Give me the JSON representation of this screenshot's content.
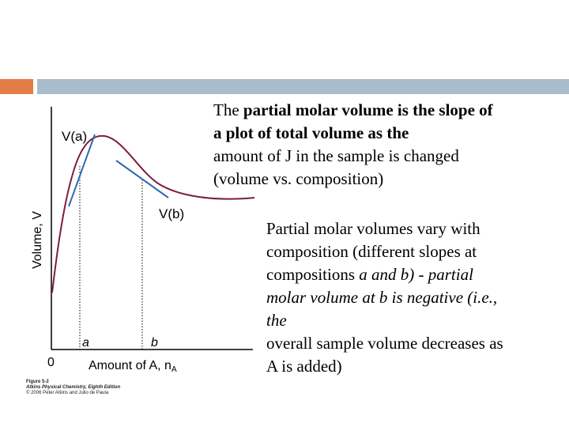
{
  "theme": {
    "accent_orange": "#E27D45",
    "accent_blue": "#A9BCCB",
    "curve_color": "#7B1F3E",
    "tangent_color": "#2E6BB5"
  },
  "main_text": {
    "line1_normal": "The ",
    "line1_bold": "partial molar volume is the slope of",
    "line2_bold": "a plot of total volume as the",
    "line3": "amount of J in the sample is changed",
    "line4": "(volume vs. composition)"
  },
  "side_text": {
    "line1": "Partial molar volumes vary with",
    "line2": "composition (different slopes at",
    "line3_normal": "compositions ",
    "line3_italic": "a and b) - partial",
    "line4_italic": "molar volume at b is negative (i.e.,",
    "line5_italic": "the",
    "line6": "overall sample volume decreases as",
    "line7": "A is added)"
  },
  "figure": {
    "y_axis_label": "Volume, V",
    "x_axis_label": "Amount of A, n",
    "x_axis_label_sub": "A",
    "origin_label": "0",
    "point_a_label": "a",
    "point_b_label": "b",
    "tangent_a_label": "V(a)",
    "tangent_b_label": "V(b)"
  },
  "caption": {
    "line1": "Figure 5-2",
    "line2": "Atkins Physical Chemistry, Eighth Edition",
    "line3": "© 2006 Peter Atkins and Julio de Paula"
  }
}
